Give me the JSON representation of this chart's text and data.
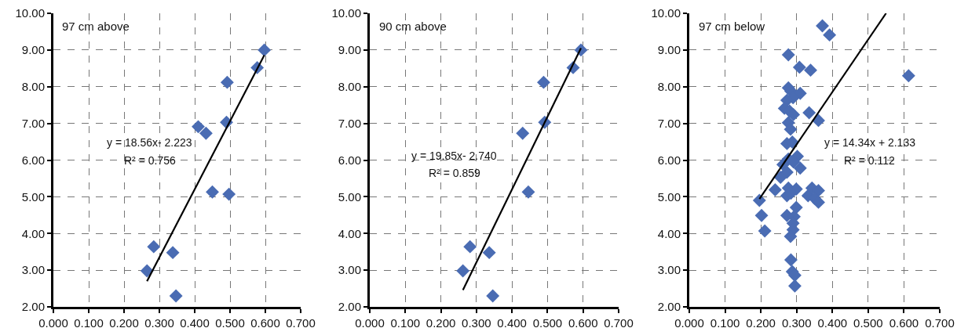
{
  "chart_data": [
    {
      "type": "scatter",
      "grid": true,
      "xlim": [
        0,
        0.7
      ],
      "ylim": [
        2,
        10
      ],
      "xticks": [
        {
          "value": 0,
          "label": "0.000"
        },
        {
          "value": 0.1,
          "label": "0.100"
        },
        {
          "value": 0.2,
          "label": "0.200"
        },
        {
          "value": 0.3,
          "label": "0.300"
        },
        {
          "value": 0.4,
          "label": "0.400"
        },
        {
          "value": 0.5,
          "label": "0.500"
        },
        {
          "value": 0.6,
          "label": "0.600"
        },
        {
          "value": 0.7,
          "label": "0.700"
        }
      ],
      "yticks": [
        {
          "value": 2,
          "label": "2.00"
        },
        {
          "value": 3,
          "label": "3.00"
        },
        {
          "value": 4,
          "label": "4.00"
        },
        {
          "value": 5,
          "label": "5.00"
        },
        {
          "value": 6,
          "label": "6.00"
        },
        {
          "value": 7,
          "label": "7.00"
        },
        {
          "value": 8,
          "label": "8.00"
        },
        {
          "value": 9,
          "label": "9.00"
        },
        {
          "value": 10,
          "label": "10.00"
        }
      ],
      "annotations": [
        "97 cm above",
        "y = 18.56x- 2.223",
        "R² = 0.756"
      ],
      "series": [
        {
          "marker": "diamond",
          "color": "#4a6cb3",
          "x": [
            0.597,
            0.577,
            0.492,
            0.41,
            0.432,
            0.49,
            0.45,
            0.497,
            0.284,
            0.338,
            0.265,
            0.347
          ],
          "values": [
            9.0,
            8.52,
            8.12,
            6.91,
            6.73,
            7.03,
            5.13,
            5.07,
            3.64,
            3.48,
            2.98,
            2.3
          ]
        },
        {
          "type": "line",
          "color": "#000000",
          "x": [
            0.265,
            0.597
          ],
          "values": [
            2.7,
            8.86
          ]
        }
      ]
    },
    {
      "type": "scatter",
      "grid": true,
      "xlim": [
        0,
        0.7
      ],
      "ylim": [
        2,
        10
      ],
      "xticks": [
        {
          "value": 0,
          "label": "0.000"
        },
        {
          "value": 0.1,
          "label": "0.100"
        },
        {
          "value": 0.2,
          "label": "0.200"
        },
        {
          "value": 0.3,
          "label": "0.300"
        },
        {
          "value": 0.4,
          "label": "0.400"
        },
        {
          "value": 0.5,
          "label": "0.500"
        },
        {
          "value": 0.6,
          "label": "0.600"
        },
        {
          "value": 0.7,
          "label": "0.700"
        }
      ],
      "yticks": [
        {
          "value": 2,
          "label": "2.00"
        },
        {
          "value": 3,
          "label": "3.00"
        },
        {
          "value": 4,
          "label": "4.00"
        },
        {
          "value": 5,
          "label": "5.00"
        },
        {
          "value": 6,
          "label": "6.00"
        },
        {
          "value": 7,
          "label": "7.00"
        },
        {
          "value": 8,
          "label": "8.00"
        },
        {
          "value": 9,
          "label": "9.00"
        },
        {
          "value": 10,
          "label": "10.00"
        }
      ],
      "annotations": [
        "90 cm above",
        "y = 19.85x- 2.740",
        "R² = 0.859"
      ],
      "series": [
        {
          "marker": "diamond",
          "color": "#4a6cb3",
          "x": [
            0.594,
            0.572,
            0.489,
            0.492,
            0.43,
            0.446,
            0.282,
            0.336,
            0.262,
            0.346
          ],
          "values": [
            9.0,
            8.52,
            8.12,
            7.03,
            6.73,
            5.13,
            3.64,
            3.48,
            2.98,
            2.3
          ]
        },
        {
          "type": "line",
          "color": "#000000",
          "x": [
            0.262,
            0.594
          ],
          "values": [
            2.46,
            9.05
          ]
        }
      ]
    },
    {
      "type": "scatter",
      "grid": true,
      "xlim": [
        0,
        0.7
      ],
      "ylim": [
        2,
        10
      ],
      "xticks": [
        {
          "value": 0,
          "label": "0.000"
        },
        {
          "value": 0.1,
          "label": "0.100"
        },
        {
          "value": 0.2,
          "label": "0.200"
        },
        {
          "value": 0.3,
          "label": "0.300"
        },
        {
          "value": 0.4,
          "label": "0.400"
        },
        {
          "value": 0.5,
          "label": "0.500"
        },
        {
          "value": 0.6,
          "label": "0.600"
        },
        {
          "value": 0.7,
          "label": "0.700"
        }
      ],
      "yticks": [
        {
          "value": 2,
          "label": "2.00"
        },
        {
          "value": 3,
          "label": "3.00"
        },
        {
          "value": 4,
          "label": "4.00"
        },
        {
          "value": 5,
          "label": "5.00"
        },
        {
          "value": 6,
          "label": "6.00"
        },
        {
          "value": 7,
          "label": "7.00"
        },
        {
          "value": 8,
          "label": "8.00"
        },
        {
          "value": 9,
          "label": "9.00"
        },
        {
          "value": 10,
          "label": "10.00"
        }
      ],
      "annotations": [
        "97 cm below",
        "y = 14.34x + 2.133",
        "R² = 0.112"
      ],
      "series": [
        {
          "marker": "diamond",
          "color": "#4a6cb3",
          "x": [
            0.372,
            0.392,
            0.277,
            0.308,
            0.339,
            0.613,
            0.277,
            0.284,
            0.31,
            0.29,
            0.273,
            0.266,
            0.28,
            0.291,
            0.335,
            0.361,
            0.277,
            0.283,
            0.273,
            0.288,
            0.302,
            0.277,
            0.262,
            0.291,
            0.31,
            0.273,
            0.255,
            0.24,
            0.277,
            0.273,
            0.299,
            0.284,
            0.332,
            0.343,
            0.361,
            0.35,
            0.361,
            0.196,
            0.202,
            0.211,
            0.299,
            0.273,
            0.293,
            0.29,
            0.29,
            0.283,
            0.284,
            0.288,
            0.295,
            0.295
          ],
          "values": [
            9.66,
            9.41,
            8.87,
            8.53,
            8.45,
            8.3,
            7.97,
            7.88,
            7.82,
            7.7,
            7.63,
            7.41,
            7.34,
            7.24,
            7.29,
            7.08,
            7.02,
            6.84,
            6.45,
            6.49,
            6.1,
            6.03,
            5.88,
            5.95,
            5.78,
            5.67,
            5.53,
            5.19,
            5.24,
            5.03,
            5.21,
            5.1,
            5.03,
            5.24,
            5.17,
            4.96,
            4.85,
            4.9,
            4.49,
            4.07,
            4.71,
            4.49,
            4.46,
            4.28,
            4.1,
            3.92,
            3.28,
            2.96,
            2.86,
            2.57
          ]
        },
        {
          "type": "line",
          "color": "#000000",
          "x": [
            0.196,
            0.55
          ],
          "values": [
            4.94,
            10.0
          ]
        }
      ]
    }
  ]
}
